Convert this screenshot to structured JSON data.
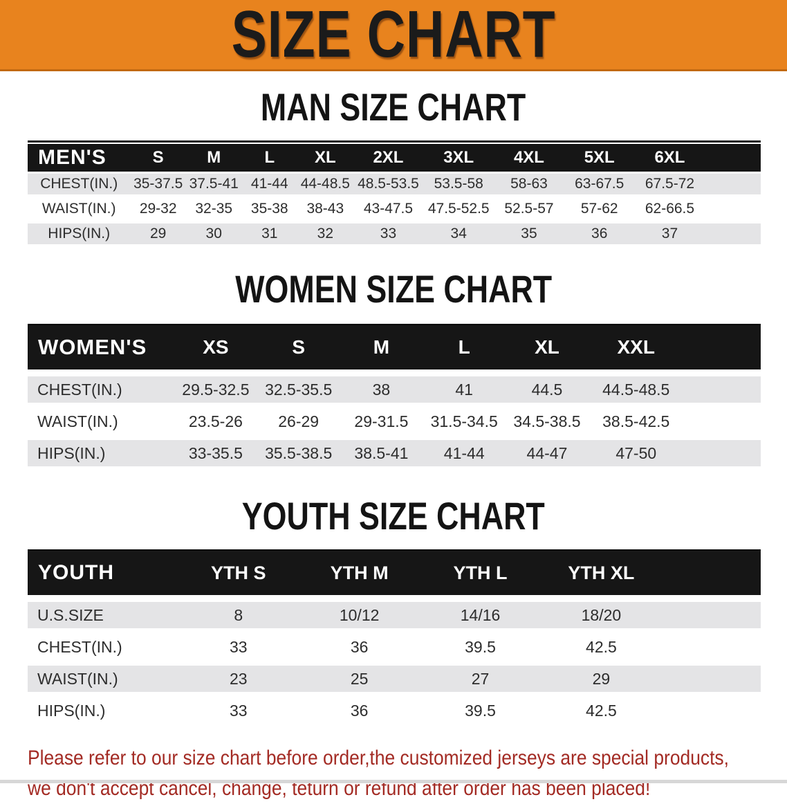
{
  "banner": {
    "title": "SIZE CHART"
  },
  "colors": {
    "banner_bg": "#E8831E",
    "banner_border": "#C2690F",
    "table_header_bar": "#161616",
    "row_alt_gray": "#E4E4E6",
    "disclaimer_red": "#A32B24"
  },
  "men": {
    "heading": "MAN SIZE CHART",
    "table": {
      "columns": [
        "MEN'S",
        "S",
        "M",
        "L",
        "XL",
        "2XL",
        "3XL",
        "4XL",
        "5XL",
        "6XL"
      ],
      "rows": [
        {
          "label": "CHEST(IN.)",
          "values": [
            "35-37.5",
            "37.5-41",
            "41-44",
            "44-48.5",
            "48.5-53.5",
            "53.5-58",
            "58-63",
            "63-67.5",
            "67.5-72"
          ]
        },
        {
          "label": "WAIST(IN.)",
          "values": [
            "29-32",
            "32-35",
            "35-38",
            "38-43",
            "43-47.5",
            "47.5-52.5",
            "52.5-57",
            "57-62",
            "62-66.5"
          ]
        },
        {
          "label": "HIPS(IN.)",
          "values": [
            "29",
            "30",
            "31",
            "32",
            "33",
            "34",
            "35",
            "36",
            "37"
          ]
        }
      ]
    }
  },
  "women": {
    "heading": "WOMEN SIZE CHART",
    "table": {
      "columns": [
        "WOMEN'S",
        "XS",
        "S",
        "M",
        "L",
        "XL",
        "XXL"
      ],
      "rows": [
        {
          "label": "CHEST(IN.)",
          "values": [
            "29.5-32.5",
            "32.5-35.5",
            "38",
            "41",
            "44.5",
            "44.5-48.5"
          ]
        },
        {
          "label": "WAIST(IN.)",
          "values": [
            "23.5-26",
            "26-29",
            "29-31.5",
            "31.5-34.5",
            "34.5-38.5",
            "38.5-42.5"
          ]
        },
        {
          "label": "HIPS(IN.)",
          "values": [
            "33-35.5",
            "35.5-38.5",
            "38.5-41",
            "41-44",
            "44-47",
            "47-50"
          ]
        }
      ]
    }
  },
  "youth": {
    "heading": "YOUTH SIZE CHART",
    "table": {
      "columns": [
        "YOUTH",
        "YTH S",
        "YTH M",
        "YTH L",
        "YTH XL"
      ],
      "rows": [
        {
          "label": "U.S.SIZE",
          "values": [
            "8",
            "10/12",
            "14/16",
            "18/20"
          ]
        },
        {
          "label": "CHEST(IN.)",
          "values": [
            "33",
            "36",
            "39.5",
            "42.5"
          ]
        },
        {
          "label": "WAIST(IN.)",
          "values": [
            "23",
            "25",
            "27",
            "29"
          ]
        },
        {
          "label": "HIPS(IN.)",
          "values": [
            "33",
            "36",
            "39.5",
            "42.5"
          ]
        }
      ]
    }
  },
  "disclaimer": {
    "line1": "Please refer to our size chart before order,the customized jerseys are special products,",
    "line2": "we don't accept cancel, change, teturn or refund after order has been placed!"
  }
}
